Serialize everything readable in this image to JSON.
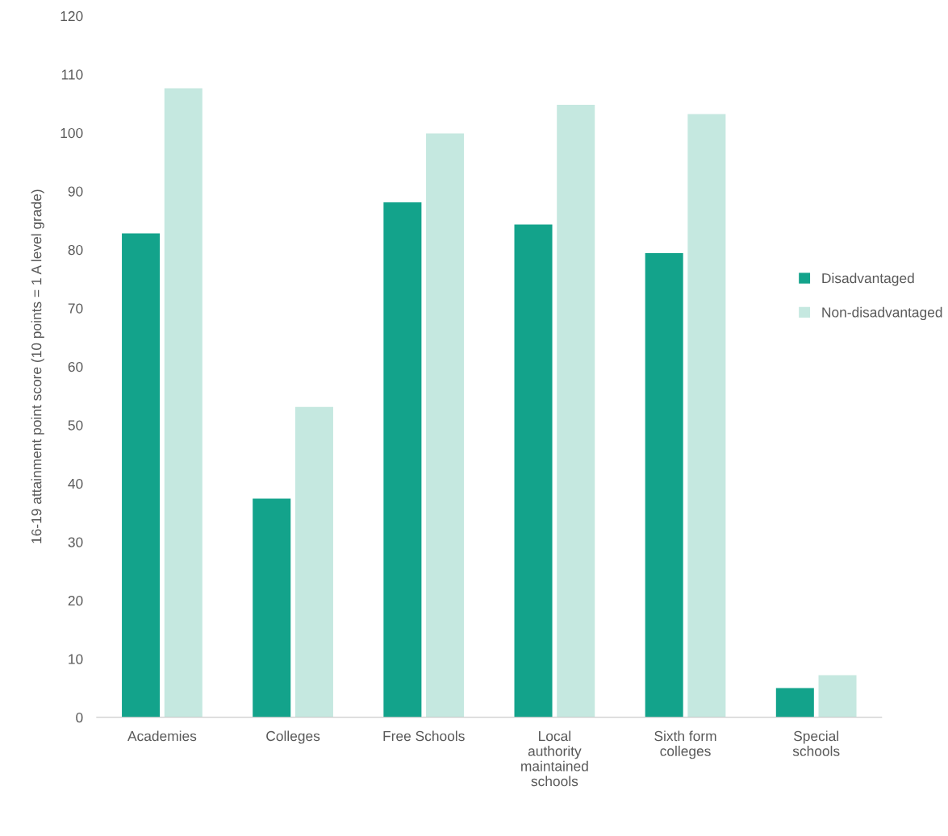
{
  "chart_data": {
    "type": "bar",
    "ylabel": "16-19 attainment point score (10 points = 1 A level grade)",
    "categories": [
      "Academies",
      "Colleges",
      "Free Schools",
      "Local authority maintained schools",
      "Sixth form colleges",
      "Special schools"
    ],
    "series": [
      {
        "name": "Disadvantaged",
        "color": "#13a38b",
        "values": [
          82.8,
          37.4,
          88.1,
          84.3,
          79.4,
          5.0
        ]
      },
      {
        "name": "Non-disadvantaged",
        "color": "#c5e8e0",
        "values": [
          107.6,
          53.1,
          99.9,
          104.8,
          103.2,
          7.2
        ]
      }
    ],
    "ylim": [
      0,
      120
    ],
    "yticks": [
      0,
      10,
      20,
      30,
      40,
      50,
      60,
      70,
      80,
      90,
      100,
      110,
      120
    ],
    "grid": false,
    "legend": "right"
  }
}
